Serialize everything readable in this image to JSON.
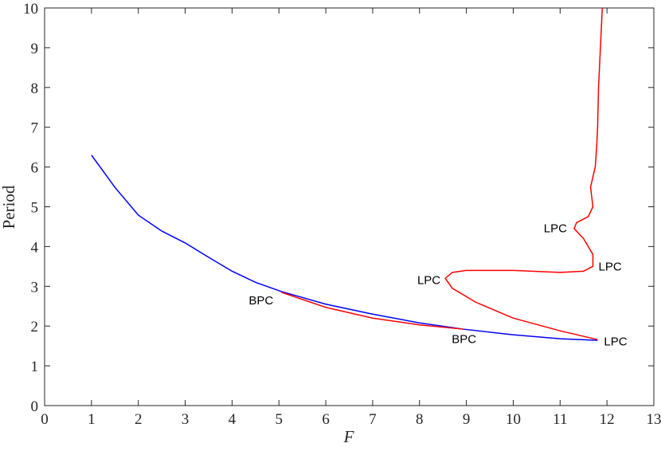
{
  "chart_data": {
    "type": "line",
    "x_label": "F",
    "y_label": "Period",
    "xlim": [
      0,
      13
    ],
    "ylim": [
      0,
      10
    ],
    "xticks": [
      0,
      1,
      2,
      3,
      4,
      5,
      6,
      7,
      8,
      9,
      10,
      11,
      12,
      13
    ],
    "yticks": [
      0,
      1,
      2,
      3,
      4,
      5,
      6,
      7,
      8,
      9,
      10
    ],
    "series": [
      {
        "color": "#0000ff",
        "x": [
          1,
          1.5,
          2,
          2.5,
          3,
          3.5,
          4,
          4.5,
          5.05,
          6,
          7,
          8,
          8.95,
          10,
          11,
          11.8
        ],
        "values": [
          6.3,
          5.49,
          4.79,
          4.39,
          4.09,
          3.73,
          3.38,
          3.1,
          2.87,
          2.55,
          2.3,
          2.08,
          1.92,
          1.78,
          1.68,
          1.64
        ]
      },
      {
        "color": "#ff0000",
        "x": [
          5.05,
          6,
          7,
          8,
          8.95,
          null,
          11.8,
          11,
          10,
          9.2,
          8.7,
          8.55,
          8.7,
          9,
          10,
          11,
          11.5,
          11.7,
          11.7,
          11.5,
          11.3,
          11.35,
          11.6,
          11.7,
          11.65,
          11.75,
          11.78,
          11.8,
          11.82,
          11.86,
          11.9
        ],
        "values": [
          2.85,
          2.47,
          2.2,
          2.03,
          1.92,
          null,
          1.66,
          1.88,
          2.2,
          2.6,
          2.95,
          3.2,
          3.35,
          3.4,
          3.4,
          3.35,
          3.38,
          3.5,
          3.8,
          4.2,
          4.45,
          4.6,
          4.75,
          5.0,
          5.5,
          6.0,
          6.5,
          7.0,
          8.0,
          9.0,
          10.0
        ]
      }
    ],
    "annotations": [
      {
        "text": "BPC",
        "x": 5.05,
        "y": 2.85
      },
      {
        "text": "BPC",
        "x": 8.95,
        "y": 1.93
      },
      {
        "text": "LPC",
        "x": 11.8,
        "y": 1.65
      },
      {
        "text": "LPC",
        "x": 8.55,
        "y": 3.2
      },
      {
        "text": "LPC",
        "x": 11.7,
        "y": 3.5
      },
      {
        "text": "LPC",
        "x": 11.3,
        "y": 4.5
      }
    ]
  }
}
